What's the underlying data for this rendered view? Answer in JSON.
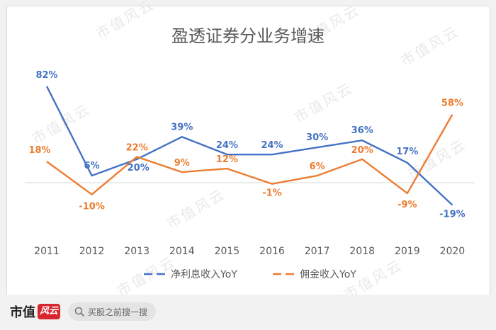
{
  "chart_data": {
    "type": "line",
    "title": "盈透证券分业务增速",
    "categories": [
      "2011",
      "2012",
      "2013",
      "2014",
      "2015",
      "2016",
      "2017",
      "2018",
      "2019",
      "2020"
    ],
    "ylim": [
      -40,
      100
    ],
    "grid": false,
    "legend": "bottom",
    "series": [
      {
        "name": "净利息收入YoY",
        "color": "#4472c4",
        "values": [
          82,
          6,
          20,
          39,
          24,
          24,
          30,
          36,
          17,
          -19
        ],
        "labels": [
          "82%",
          "6%",
          "20%",
          "39%",
          "24%",
          "24%",
          "30%",
          "36%",
          "17%",
          "-19%"
        ]
      },
      {
        "name": "佣金收入YoY",
        "color": "#ed7d31",
        "values": [
          18,
          -10,
          22,
          9,
          12,
          -1,
          6,
          20,
          -9,
          58
        ],
        "labels": [
          "18%",
          "-10%",
          "22%",
          "9%",
          "12%",
          "-1%",
          "6%",
          "20%",
          "-9%",
          "58%"
        ]
      }
    ]
  },
  "watermark": "市值风云",
  "footer": {
    "brand": "市值",
    "seal": "风云",
    "search_placeholder": "买股之前搜一搜"
  }
}
